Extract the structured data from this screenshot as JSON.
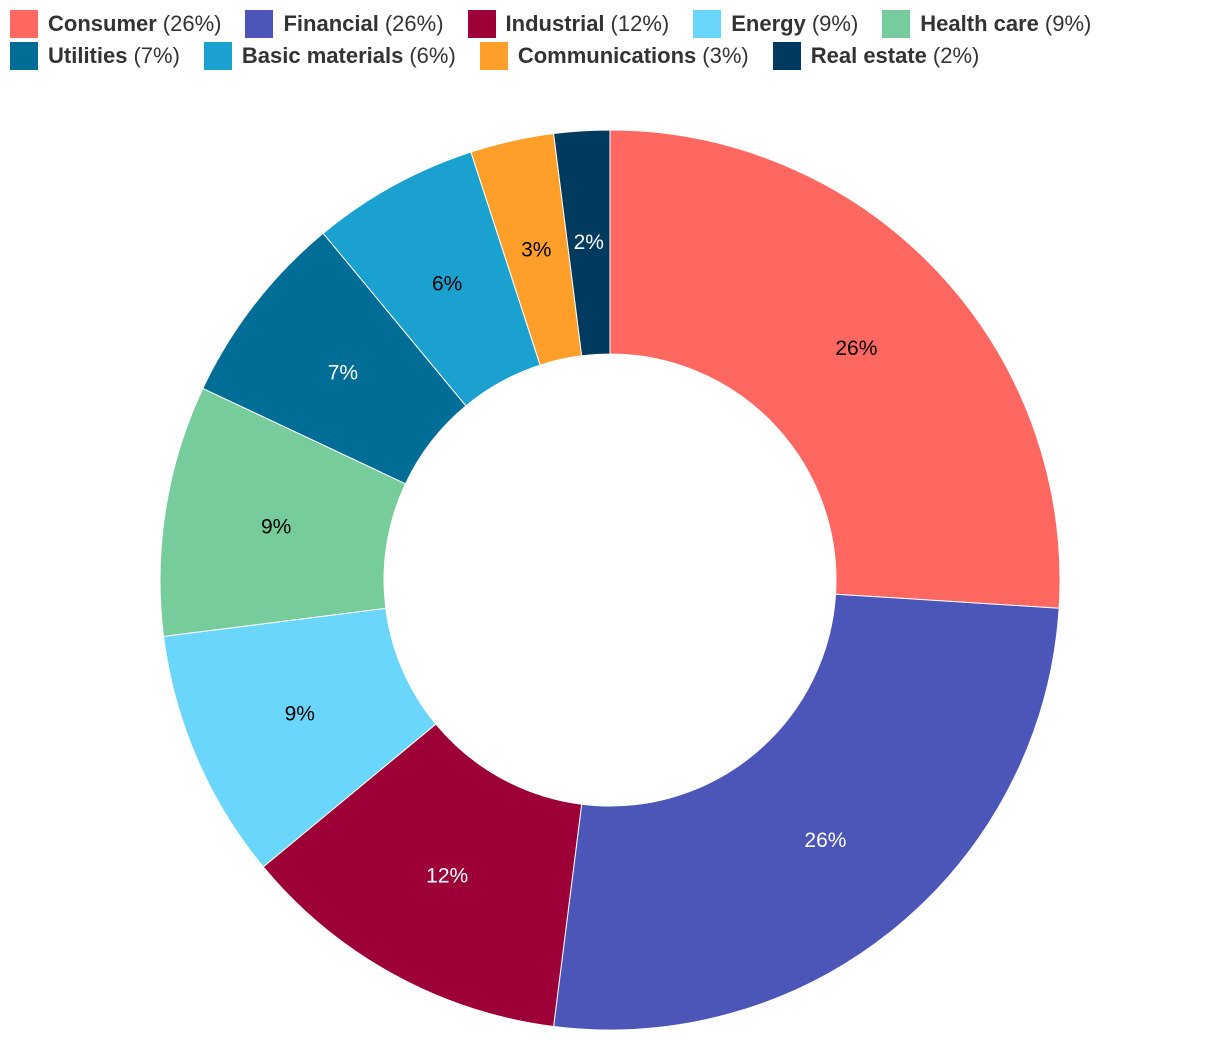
{
  "chart_data": {
    "type": "pie",
    "style": "donut",
    "categories": [
      "Consumer",
      "Financial",
      "Industrial",
      "Energy",
      "Health care",
      "Utilities",
      "Basic materials",
      "Communications",
      "Real estate"
    ],
    "values": [
      26,
      26,
      12,
      9,
      9,
      7,
      6,
      3,
      2
    ],
    "colors": [
      "#ff6760",
      "#4c55b8",
      "#9c0037",
      "#6bd6fc",
      "#77cc9c",
      "#006d96",
      "#1ba1cf",
      "#ff9f2a",
      "#003a5f"
    ],
    "label_colors": [
      "#000000",
      "#ffffff",
      "#ffffff",
      "#000000",
      "#000000",
      "#ffffff",
      "#000000",
      "#000000",
      "#ffffff"
    ],
    "slice_labels": [
      "26%",
      "26%",
      "12%",
      "9%",
      "9%",
      "7%",
      "6%",
      "3%",
      "2%"
    ],
    "legend_pct": [
      "(26%)",
      "(26%)",
      "(12%)",
      "(9%)",
      "(9%)",
      "(7%)",
      "(6%)",
      "(3%)",
      "(2%)"
    ],
    "legend_placement": "top",
    "unit": "%"
  }
}
